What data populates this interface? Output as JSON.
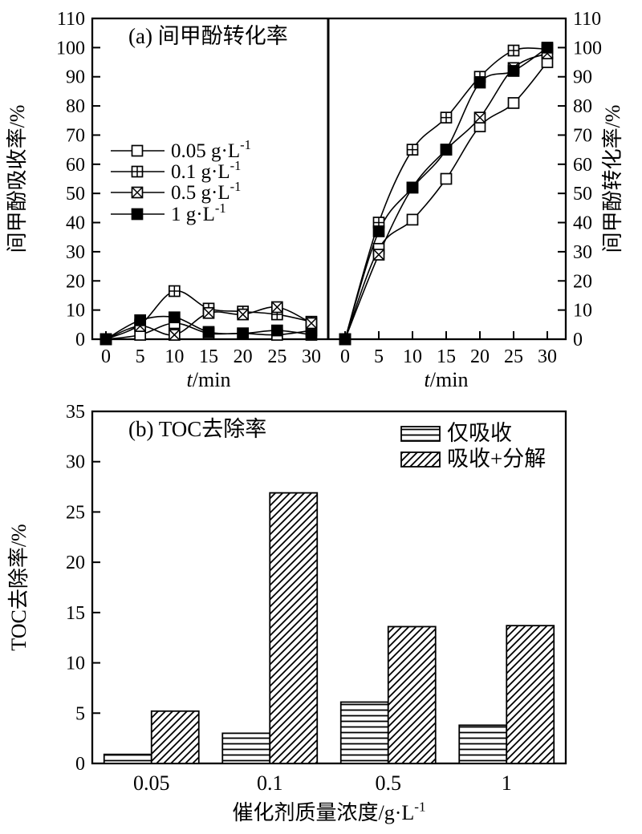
{
  "figure": {
    "background": "#ffffff",
    "ink": "#000000"
  },
  "chart_data": [
    {
      "id": "panel-a",
      "type": "line",
      "title": "(a) 间甲酚转化率",
      "xlabel": "t/min",
      "x": [
        0,
        5,
        10,
        15,
        20,
        25,
        30
      ],
      "ylim": [
        0,
        110
      ],
      "ytick_step": 10,
      "legend": {
        "position": "left-subplot-middle",
        "items": [
          "0.05 g·L⁻¹",
          "0.1 g·L⁻¹",
          "0.5 g·L⁻¹",
          "1 g·L⁻¹"
        ]
      },
      "subplots": [
        {
          "side": "left",
          "ylabel": "间甲酚吸收率/%",
          "series": [
            {
              "name": "0.05 g·L⁻¹",
              "marker": "open-square",
              "values": [
                0,
                1.5,
                5.5,
                2,
                2,
                1.5,
                3
              ]
            },
            {
              "name": "0.1 g·L⁻¹",
              "marker": "plus-square",
              "values": [
                0,
                5,
                16.5,
                10.5,
                9.5,
                8.5,
                6
              ]
            },
            {
              "name": "0.5 g·L⁻¹",
              "marker": "x-square",
              "values": [
                0,
                4.5,
                1.5,
                9,
                8.5,
                11,
                5.5
              ]
            },
            {
              "name": "1 g·L⁻¹",
              "marker": "filled-square",
              "values": [
                0,
                6.5,
                7.5,
                2.5,
                2,
                3,
                1.5
              ]
            }
          ]
        },
        {
          "side": "right",
          "ylabel": "间甲酚转化率/%",
          "series": [
            {
              "name": "0.05 g·L⁻¹",
              "marker": "open-square",
              "values": [
                0,
                31,
                41,
                55,
                73,
                81,
                95
              ]
            },
            {
              "name": "0.1 g·L⁻¹",
              "marker": "plus-square",
              "values": [
                0,
                40,
                65,
                76,
                90,
                99,
                99.5
              ]
            },
            {
              "name": "0.5 g·L⁻¹",
              "marker": "x-square",
              "values": [
                0,
                29,
                52,
                65,
                76,
                93,
                98
              ]
            },
            {
              "name": "1 g·L⁻¹",
              "marker": "filled-square",
              "values": [
                0,
                37,
                52,
                65,
                88,
                92,
                100
              ]
            }
          ]
        }
      ]
    },
    {
      "id": "panel-b",
      "type": "bar",
      "title": "(b) TOC去除率",
      "categories": [
        "0.05",
        "0.1",
        "0.5",
        "1"
      ],
      "xlabel": "催化剂质量浓度/g·L⁻¹",
      "ylabel": "TOC去除率/%",
      "ylim": [
        0,
        35
      ],
      "ytick_step": 5,
      "legend": {
        "position": "top-right",
        "items": [
          "仅吸收",
          "吸收+分解"
        ]
      },
      "series": [
        {
          "name": "仅吸收",
          "hatch": "horizontal",
          "values": [
            0.9,
            3.0,
            6.1,
            3.8
          ]
        },
        {
          "name": "吸收+分解",
          "hatch": "diagonal",
          "values": [
            5.2,
            26.9,
            13.6,
            13.7
          ]
        }
      ]
    }
  ]
}
